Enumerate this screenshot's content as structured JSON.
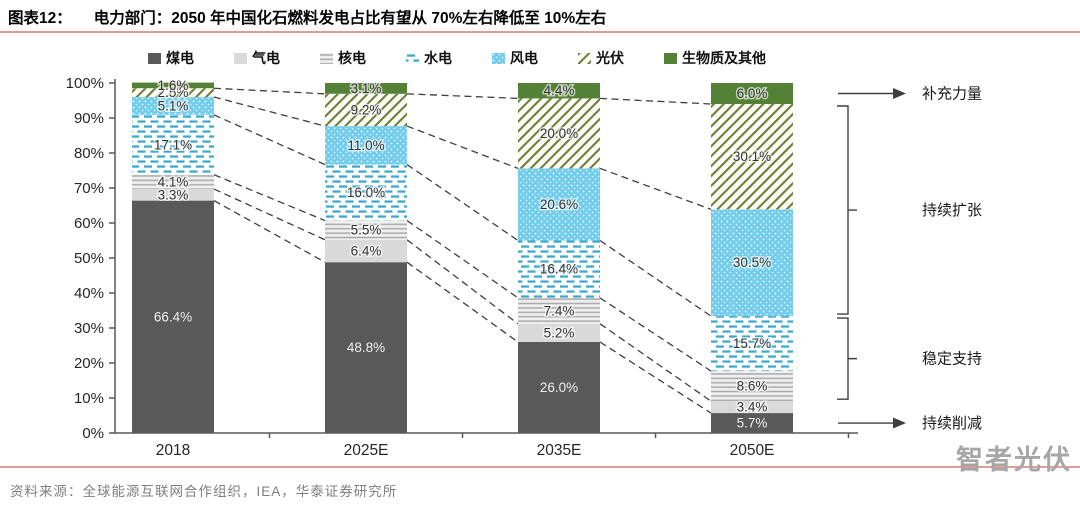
{
  "header": {
    "tag": "图表12：",
    "title": "电力部门：2050 年中国化石燃料发电占比有望从 70%左右降低至 10%左右"
  },
  "chart_data": {
    "type": "bar",
    "stacked": true,
    "percent_stack": true,
    "title": "2050 年中国化石燃料发电占比有望从 70%左右降低至 10%左右",
    "xlabel": "",
    "ylabel": "",
    "ylim": [
      0,
      100
    ],
    "ytick_labels": [
      "0%",
      "10%",
      "20%",
      "30%",
      "40%",
      "50%",
      "60%",
      "70%",
      "80%",
      "90%",
      "100%"
    ],
    "grid": false,
    "legend_position": "top",
    "categories": [
      "2018",
      "2025E",
      "2035E",
      "2050E"
    ],
    "series": [
      {
        "name": "煤电",
        "pattern": "solid",
        "color": "#595959",
        "values": [
          66.4,
          48.8,
          26.0,
          5.7
        ]
      },
      {
        "name": "气电",
        "pattern": "solid",
        "color": "#d9d9d9",
        "values": [
          3.3,
          6.4,
          5.2,
          3.4
        ]
      },
      {
        "name": "核电",
        "pattern": "hstripe",
        "color": "#a9a9a9",
        "values": [
          4.1,
          5.5,
          7.4,
          8.6
        ]
      },
      {
        "name": "水电",
        "pattern": "dash",
        "color": "#3fa9cc",
        "values": [
          17.1,
          16.0,
          16.4,
          15.7
        ]
      },
      {
        "name": "风电",
        "pattern": "dots",
        "color": "#72cdec",
        "values": [
          5.1,
          11.0,
          20.6,
          30.5
        ]
      },
      {
        "name": "光伏",
        "pattern": "diag",
        "color": "#6f7d3a",
        "values": [
          2.5,
          9.2,
          20.0,
          30.1
        ]
      },
      {
        "name": "生物质及其他",
        "pattern": "solid",
        "color": "#538135",
        "values": [
          1.6,
          3.1,
          4.4,
          6.0
        ]
      }
    ],
    "annotations": [
      {
        "label": "补充力量",
        "type": "arrow",
        "at_percent": 97.0
      },
      {
        "label": "持续扩张",
        "type": "bracket",
        "from_percent": 94.0,
        "to_percent": 33.4
      },
      {
        "label": "稳定支持",
        "type": "bracket",
        "from_percent": 33.4,
        "to_percent": 9.1
      },
      {
        "label": "持续削减",
        "type": "arrow",
        "at_percent": 2.85
      }
    ]
  },
  "footer": {
    "source": "资料来源：全球能源互联网合作组织，IEA，华泰证券研究所"
  },
  "watermark": "智者光伏",
  "colors": {
    "accent_line": "#dd9f94",
    "axis": "#595959",
    "connector": "#3f3f3f",
    "watermark": "#a6a6a6"
  }
}
